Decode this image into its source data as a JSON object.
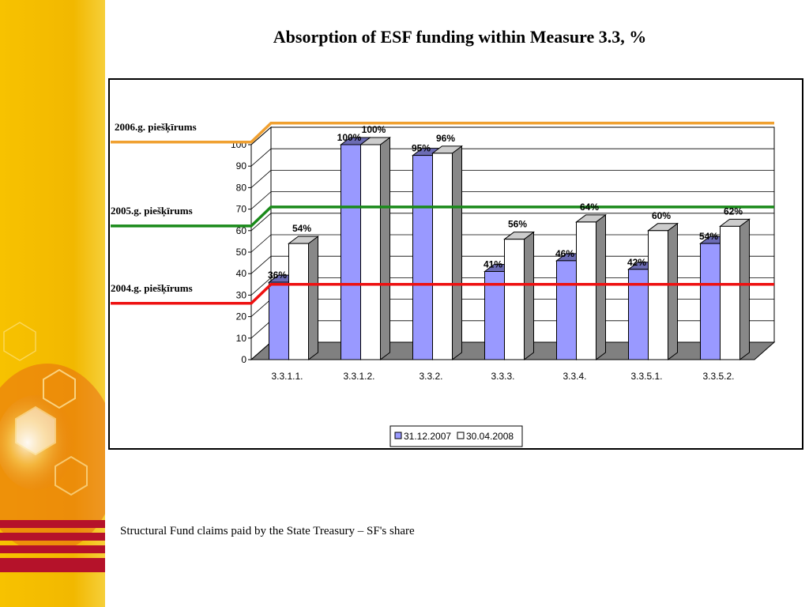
{
  "slide": {
    "title": "Absorption of ESF funding within Measure 3.3, %",
    "caption": "Structural Fund claims paid by the State Treasury – SF's share"
  },
  "colors": {
    "band_yellow": "#f2b800",
    "band_red": "#b5122a",
    "series1": "#9999ff",
    "series2": "#ffffff",
    "line_2006": "#f0a030",
    "line_2005": "#1a8a1a",
    "line_2004": "#ee1111",
    "floor": "#808080"
  },
  "chart_data": {
    "type": "bar",
    "categories": [
      "3.3.1.1.",
      "3.3.1.2.",
      "3.3.2.",
      "3.3.3.",
      "3.3.4.",
      "3.3.5.1.",
      "3.3.5.2."
    ],
    "series": [
      {
        "name": "31.12.2007",
        "values": [
          36,
          100,
          95,
          41,
          46,
          42,
          54
        ],
        "labels": [
          "36%",
          "100%",
          "95%",
          "41%",
          "46%",
          "42%",
          "54%"
        ]
      },
      {
        "name": "30.04.2008",
        "values": [
          54,
          100,
          96,
          56,
          64,
          60,
          62
        ],
        "labels": [
          "54%",
          "100%",
          "96%",
          "56%",
          "64%",
          "60%",
          "62%"
        ]
      }
    ],
    "ylim": [
      0,
      100
    ],
    "yticks": [
      "0",
      "10",
      "20",
      "30",
      "40",
      "50",
      "60",
      "70",
      "80",
      "90",
      "100"
    ],
    "grid": true,
    "legend_position": "bottom",
    "reference_lines": [
      {
        "label": "2006.g. piešķīrums",
        "value": 110
      },
      {
        "label": "2005.g. piešķīrums",
        "value": 71
      },
      {
        "label": "2004.g. piešķīrums",
        "value": 35
      }
    ]
  }
}
